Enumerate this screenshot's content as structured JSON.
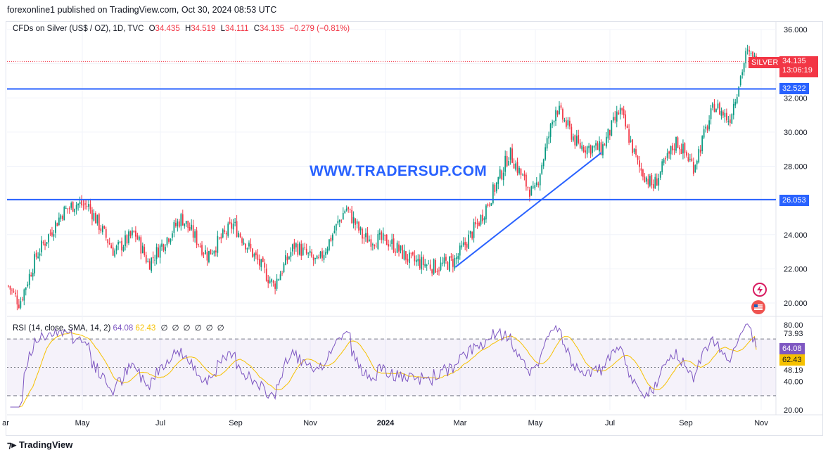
{
  "publisher": "forexonline1 published on TradingView.com, Oct 30, 2024 08:53 UTC",
  "legend": {
    "symbol": "CFDs on Silver (US$ / OZ), 1D, TVC",
    "o_label": "O",
    "o": "34.435",
    "h_label": "H",
    "h": "34.519",
    "l_label": "L",
    "l": "34.111",
    "c_label": "C",
    "c": "34.135",
    "change": "−0.279 (−0.81%)"
  },
  "watermark": "WWW.TRADERSUP.COM",
  "rsi_legend": {
    "title": "RSI (14, close, SMA, 14, 2)",
    "rsi": "64.08",
    "sma": "62.43",
    "placeholders": "∅∅∅∅∅∅"
  },
  "tags": {
    "symbol": "SILVER",
    "price": "34.135",
    "countdown": "13:06:19",
    "upper_line": "32.522",
    "lower_line": "26.053",
    "rsi": "64.08",
    "rsi_sma": "62.43"
  },
  "footer": "TradingView",
  "colors": {
    "up": "#089981",
    "down": "#f23645",
    "line": "#2962ff",
    "rsi": "#7e57c2",
    "rsi_sma": "#f6c100"
  },
  "chart_data": [
    {
      "type": "candlestick",
      "title": "CFDs on Silver (US$ / OZ), 1D, TVC",
      "x_ticks": [
        "ar",
        "May",
        "Jul",
        "Sep",
        "Nov",
        "2024",
        "Mar",
        "May",
        "Jul",
        "Sep",
        "Nov"
      ],
      "y_ticks": [
        "36.000",
        "34.000",
        "32.000",
        "30.000",
        "28.000",
        "26.000",
        "24.000",
        "22.000",
        "20.000"
      ],
      "ylim": [
        19.0,
        36.6
      ],
      "horizontal_lines": [
        32.522,
        26.053
      ],
      "trend_line": [
        {
          "x": "2024-02-28",
          "y": 22.1
        },
        {
          "x": "2024-06-26",
          "y": 28.8
        }
      ],
      "last": {
        "open": 34.435,
        "high": 34.519,
        "low": 34.111,
        "close": 34.135
      },
      "trend_points": [
        {
          "date": "2023-03-01",
          "close": 21.0
        },
        {
          "date": "2023-03-10",
          "close": 20.0
        },
        {
          "date": "2023-03-24",
          "close": 22.8
        },
        {
          "date": "2023-04-14",
          "close": 25.3
        },
        {
          "date": "2023-04-24",
          "close": 25.8
        },
        {
          "date": "2023-05-05",
          "close": 25.7
        },
        {
          "date": "2023-05-26",
          "close": 23.0
        },
        {
          "date": "2023-06-12",
          "close": 24.1
        },
        {
          "date": "2023-06-23",
          "close": 22.3
        },
        {
          "date": "2023-07-20",
          "close": 25.0
        },
        {
          "date": "2023-08-10",
          "close": 22.8
        },
        {
          "date": "2023-08-31",
          "close": 24.6
        },
        {
          "date": "2023-09-15",
          "close": 23.0
        },
        {
          "date": "2023-10-03",
          "close": 21.0
        },
        {
          "date": "2023-10-20",
          "close": 23.4
        },
        {
          "date": "2023-11-08",
          "close": 22.3
        },
        {
          "date": "2023-12-01",
          "close": 25.6
        },
        {
          "date": "2023-12-15",
          "close": 23.8
        },
        {
          "date": "2024-01-05",
          "close": 23.6
        },
        {
          "date": "2024-01-22",
          "close": 22.5
        },
        {
          "date": "2024-02-13",
          "close": 22.1
        },
        {
          "date": "2024-02-28",
          "close": 22.5
        },
        {
          "date": "2024-03-20",
          "close": 25.0
        },
        {
          "date": "2024-04-05",
          "close": 27.5
        },
        {
          "date": "2024-04-12",
          "close": 28.8
        },
        {
          "date": "2024-04-25",
          "close": 27.0
        },
        {
          "date": "2024-05-02",
          "close": 26.3
        },
        {
          "date": "2024-05-20",
          "close": 31.5
        },
        {
          "date": "2024-06-07",
          "close": 29.2
        },
        {
          "date": "2024-06-26",
          "close": 29.0
        },
        {
          "date": "2024-07-11",
          "close": 31.3
        },
        {
          "date": "2024-07-26",
          "close": 28.0
        },
        {
          "date": "2024-08-07",
          "close": 26.8
        },
        {
          "date": "2024-08-26",
          "close": 29.5
        },
        {
          "date": "2024-09-09",
          "close": 28.0
        },
        {
          "date": "2024-09-26",
          "close": 31.6
        },
        {
          "date": "2024-10-08",
          "close": 30.7
        },
        {
          "date": "2024-10-22",
          "close": 34.6
        },
        {
          "date": "2024-10-30",
          "close": 34.135
        }
      ]
    },
    {
      "type": "line",
      "title": "RSI (14, close, SMA, 14, 2)",
      "y_ticks": [
        "80.00",
        "73.93",
        "48.19",
        "40.00",
        "20.00"
      ],
      "bands": [
        30,
        70
      ],
      "ylim": [
        18,
        84
      ],
      "series": [
        {
          "name": "RSI",
          "last": 64.08
        },
        {
          "name": "SMA",
          "last": 62.43
        }
      ]
    }
  ]
}
